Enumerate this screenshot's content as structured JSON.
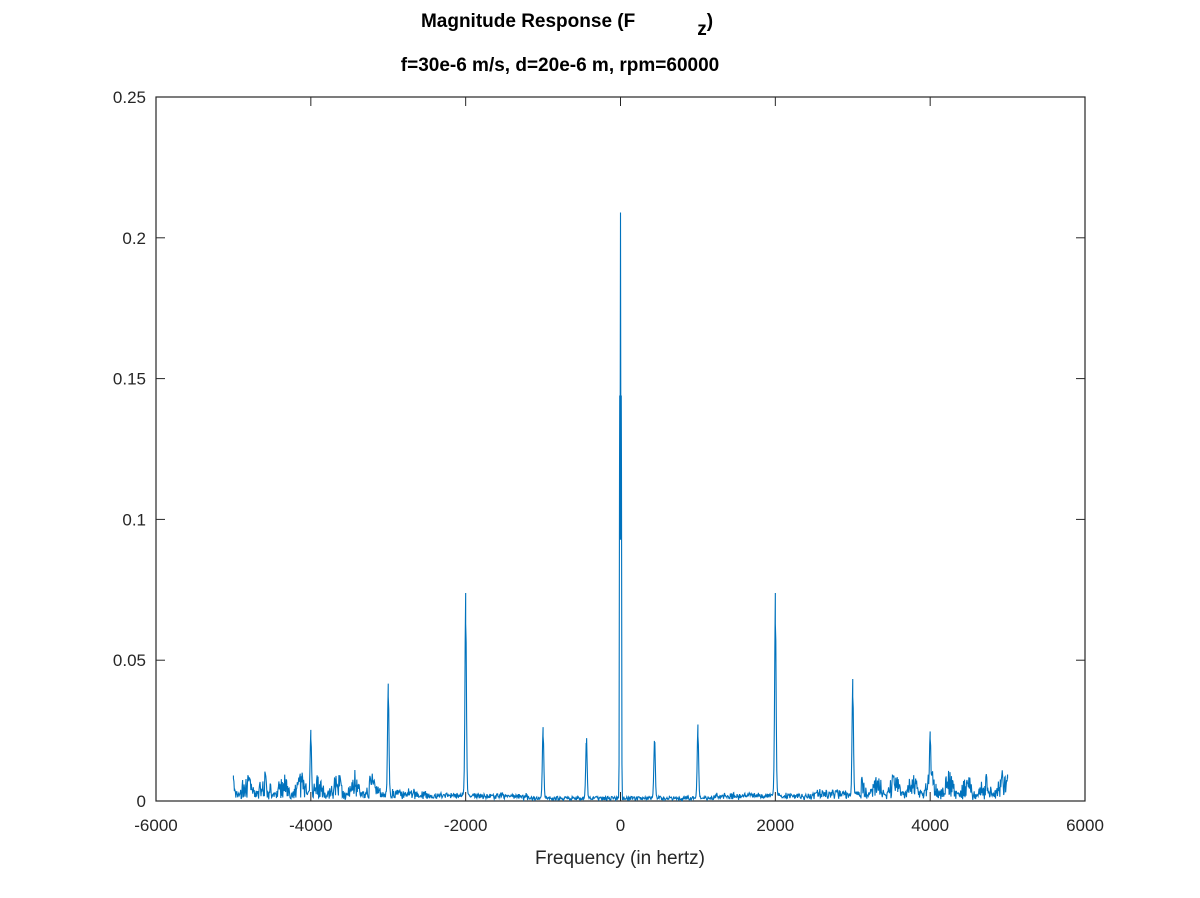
{
  "chart_data": {
    "type": "line",
    "title": "Magnitude Response (F",
    "title_subscript": "z",
    "title_close": ")",
    "subtitle": "f=30e-6 m/s, d=20e-6 m, rpm=60000",
    "xlabel": "Frequency (in hertz)",
    "ylabel": "",
    "xlim": [
      -6000,
      6000
    ],
    "ylim": [
      0,
      0.25
    ],
    "xticks": [
      -6000,
      -4000,
      -2000,
      0,
      2000,
      4000,
      6000
    ],
    "xtick_labels": [
      "-6000",
      "-4000",
      "-2000",
      "0",
      "2000",
      "4000",
      "6000"
    ],
    "yticks": [
      0,
      0.05,
      0.1,
      0.15,
      0.2,
      0.25
    ],
    "ytick_labels": [
      "0",
      "0.05",
      "0.1",
      "0.15",
      "0.2",
      "0.25"
    ],
    "grid": false,
    "box": true,
    "series_color": "#0072BD",
    "x_range": [
      -5000,
      5000
    ],
    "peaks": [
      {
        "x": 0,
        "y": 0.209
      },
      {
        "x": -10,
        "y": 0.144
      },
      {
        "x": 10,
        "y": 0.144
      },
      {
        "x": -2000,
        "y": 0.063
      },
      {
        "x": 2000,
        "y": 0.063
      },
      {
        "x": -3000,
        "y": 0.037
      },
      {
        "x": 3000,
        "y": 0.037
      },
      {
        "x": -1000,
        "y": 0.023
      },
      {
        "x": 1000,
        "y": 0.023
      },
      {
        "x": -440,
        "y": 0.02
      },
      {
        "x": 440,
        "y": 0.02
      },
      {
        "x": -4000,
        "y": 0.022
      },
      {
        "x": 4000,
        "y": 0.022
      },
      {
        "x": -5000,
        "y": 0.008
      },
      {
        "x": 5000,
        "y": 0.008
      }
    ],
    "baseline_level": 0.001,
    "noise_level_outer": 0.006
  }
}
